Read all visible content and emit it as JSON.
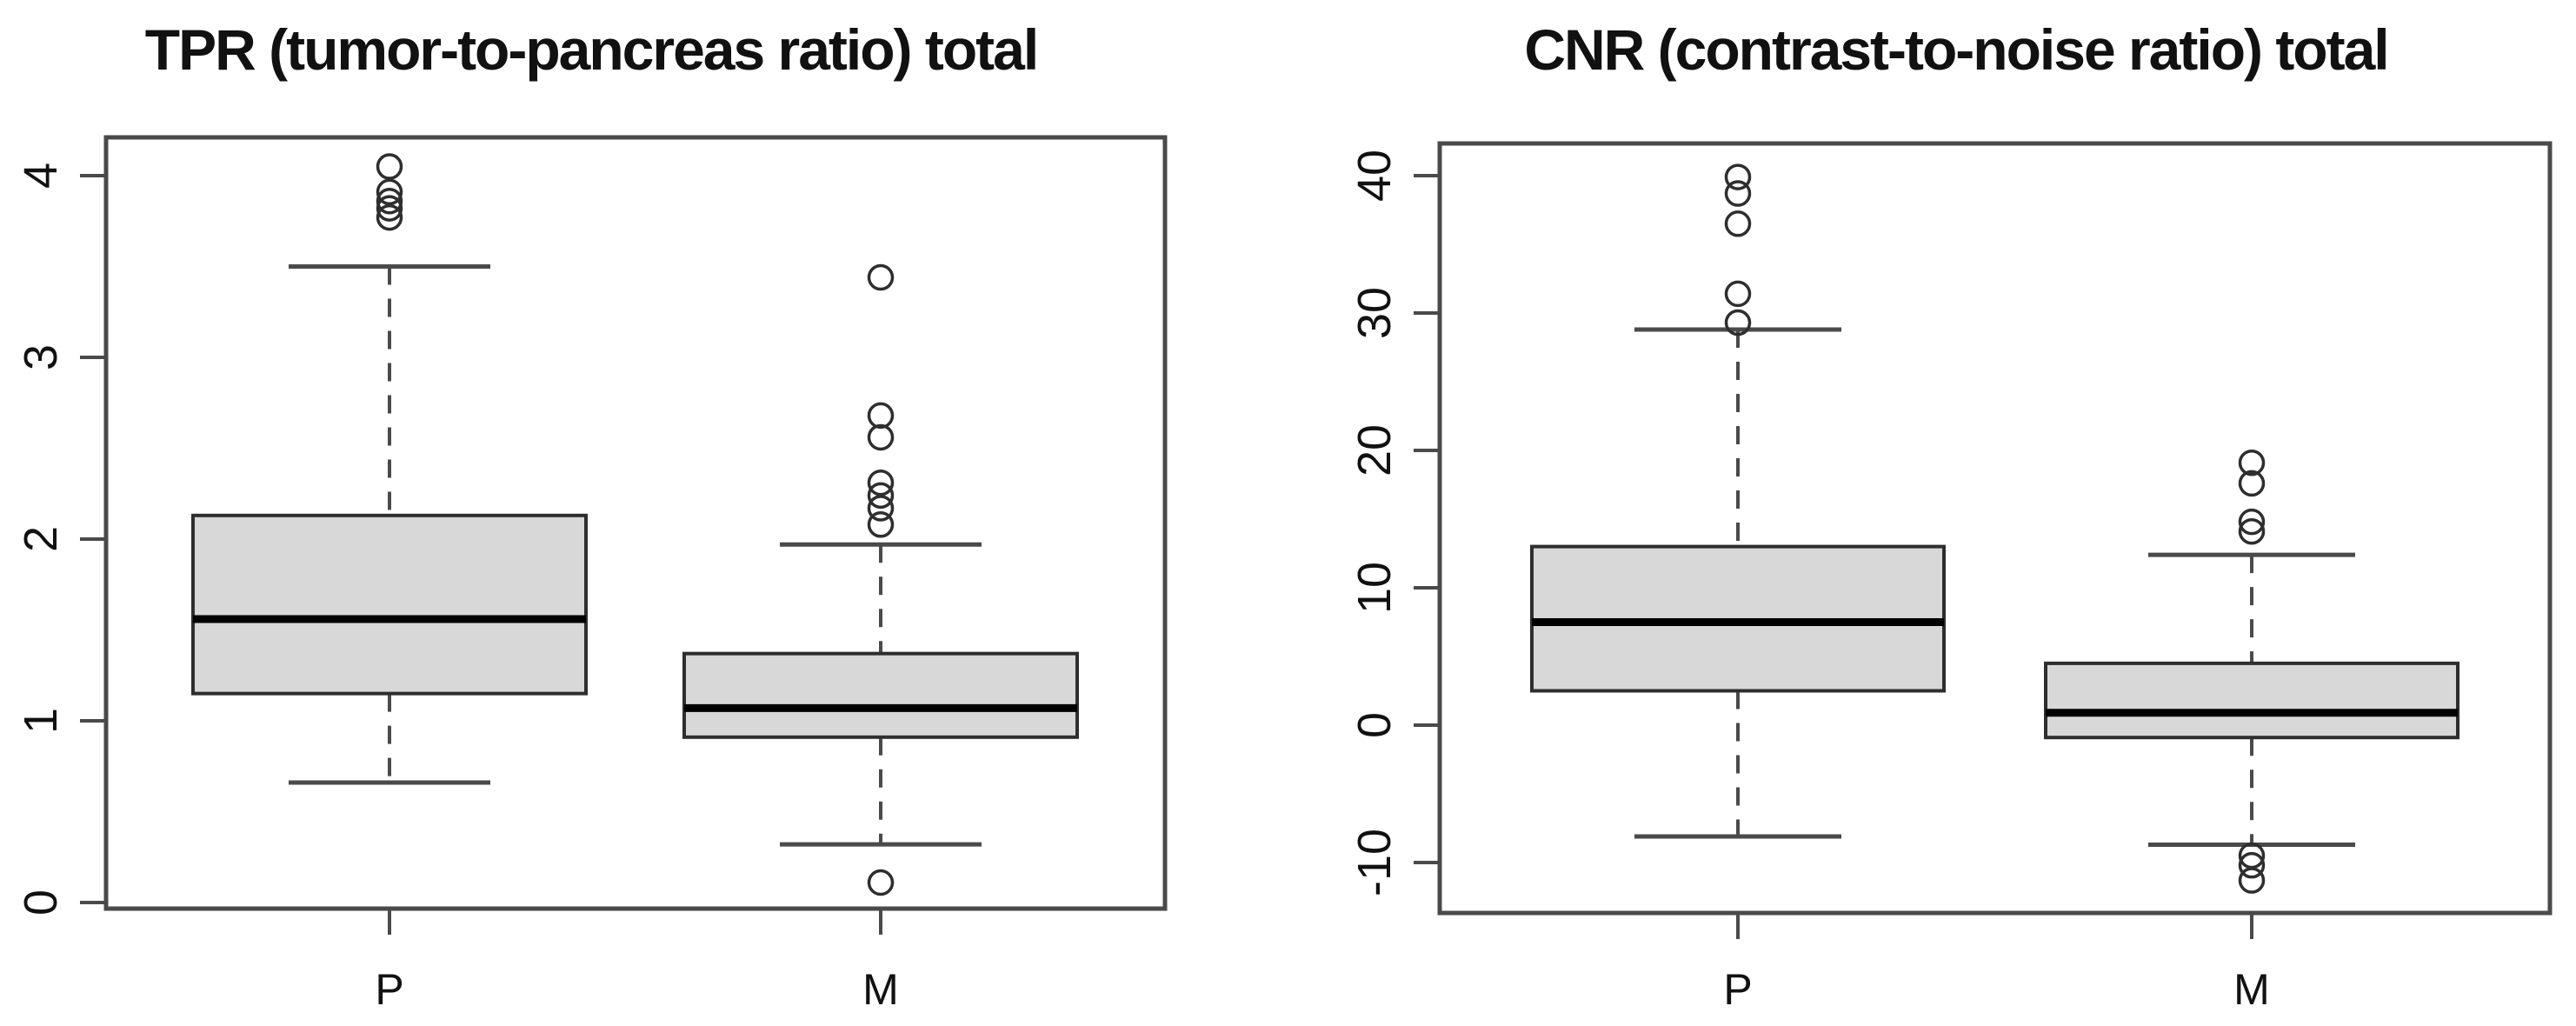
{
  "page": {
    "background": "#ffffff"
  },
  "style": {
    "box_fill": "#d8d8d8",
    "box_stroke": "#2e2e2e",
    "median_color": "#000000",
    "axis_color": "#4a4a4a",
    "whisker_color": "#4a4a4a",
    "outlier_stroke": "#2e2e2e"
  },
  "chart_data": [
    {
      "type": "boxplot",
      "title": "TPR (tumor-to-pancreas ratio) total",
      "categories": [
        "P",
        "M"
      ],
      "xlabel": "",
      "ylabel": "",
      "ylim": [
        -0.05,
        4.22
      ],
      "yticks": [
        0,
        1,
        2,
        3,
        4
      ],
      "ytick_labels": [
        "0",
        "1",
        "2",
        "3",
        "4"
      ],
      "grid": false,
      "groups": [
        {
          "label": "P",
          "q1": 1.15,
          "median": 1.56,
          "q3": 2.13,
          "whisker_low": 0.66,
          "whisker_high": 3.5,
          "outliers_high": [
            4.05,
            3.91,
            3.86,
            3.82,
            3.77
          ],
          "outliers_low": []
        },
        {
          "label": "M",
          "q1": 0.91,
          "median": 1.07,
          "q3": 1.37,
          "whisker_low": 0.32,
          "whisker_high": 1.97,
          "outliers_high": [
            3.44,
            2.68,
            2.56,
            2.31,
            2.24,
            2.17,
            2.08
          ],
          "outliers_low": [
            0.11
          ]
        }
      ]
    },
    {
      "type": "boxplot",
      "title": "CNR (contrast-to-noise ratio) total",
      "categories": [
        "P",
        "M"
      ],
      "xlabel": "",
      "ylabel": "",
      "ylim": [
        -13.5,
        42.3
      ],
      "yticks": [
        -10,
        0,
        10,
        20,
        30,
        40
      ],
      "ytick_labels": [
        "-10",
        "0",
        "10",
        "20",
        "30",
        "40"
      ],
      "grid": false,
      "groups": [
        {
          "label": "P",
          "q1": 2.5,
          "median": 7.5,
          "q3": 13.0,
          "whisker_low": -8.1,
          "whisker_high": 28.8,
          "outliers_high": [
            39.9,
            38.7,
            36.5,
            31.4,
            29.3
          ],
          "outliers_low": []
        },
        {
          "label": "M",
          "q1": -0.9,
          "median": 0.9,
          "q3": 4.5,
          "whisker_low": -8.7,
          "whisker_high": 12.4,
          "outliers_high": [
            19.1,
            17.6,
            14.8,
            14.1
          ],
          "outliers_low": [
            -9.5,
            -10.2,
            -11.3
          ]
        }
      ]
    }
  ]
}
